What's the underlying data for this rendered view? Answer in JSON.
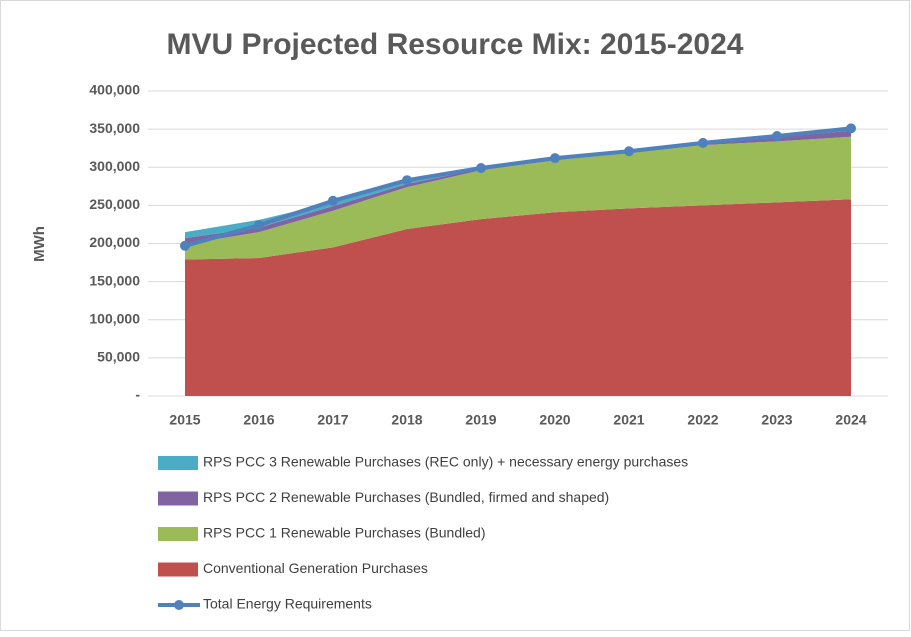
{
  "chart_data": {
    "type": "stacked-area-line",
    "title": "MVU Projected Resource Mix: 2015-2024",
    "y_label": "MWh",
    "categories": [
      "2015",
      "2016",
      "2017",
      "2018",
      "2019",
      "2020",
      "2021",
      "2022",
      "2023",
      "2024"
    ],
    "series": [
      {
        "name": "Conventional Generation Purchases",
        "color": "#c0504d",
        "values": [
          179000,
          181000,
          195000,
          219000,
          232000,
          241000,
          246000,
          250000,
          254000,
          258000
        ]
      },
      {
        "name": "RPS PCC 1 Renewable Purchases (Bundled)",
        "color": "#9bbb59",
        "values": [
          20000,
          34000,
          48000,
          55000,
          64000,
          68000,
          73000,
          79000,
          80000,
          82000
        ]
      },
      {
        "name": "RPS PCC 2 Renewable Purchases (Bundled, firmed and shaped)",
        "color": "#8064a2",
        "values": [
          8000,
          6000,
          6000,
          4000,
          2000,
          2000,
          2000,
          3000,
          5000,
          8000
        ]
      },
      {
        "name": "RPS PCC 3 Renewable Purchases (REC only) + necessary energy purchases",
        "color": "#4bacc6",
        "values": [
          8000,
          10000,
          5000,
          3000,
          1000,
          1000,
          1000,
          1000,
          1000,
          1000
        ]
      },
      {
        "name": "Total Energy Requirements",
        "color": "#4f81bd",
        "kind": "line",
        "values": [
          197000,
          224000,
          256000,
          283000,
          299000,
          312000,
          321000,
          332000,
          341000,
          351000
        ]
      }
    ],
    "ylim": [
      0,
      400000
    ],
    "yticks": [
      {
        "value": 0,
        "label": "-"
      },
      {
        "value": 50000,
        "label": "50,000"
      },
      {
        "value": 100000,
        "label": "100,000"
      },
      {
        "value": 150000,
        "label": "150,000"
      },
      {
        "value": 200000,
        "label": "200,000"
      },
      {
        "value": 250000,
        "label": "250,000"
      },
      {
        "value": 300000,
        "label": "300,000"
      },
      {
        "value": 350000,
        "label": "350,000"
      },
      {
        "value": 400000,
        "label": "400,000"
      }
    ],
    "grid": true
  }
}
